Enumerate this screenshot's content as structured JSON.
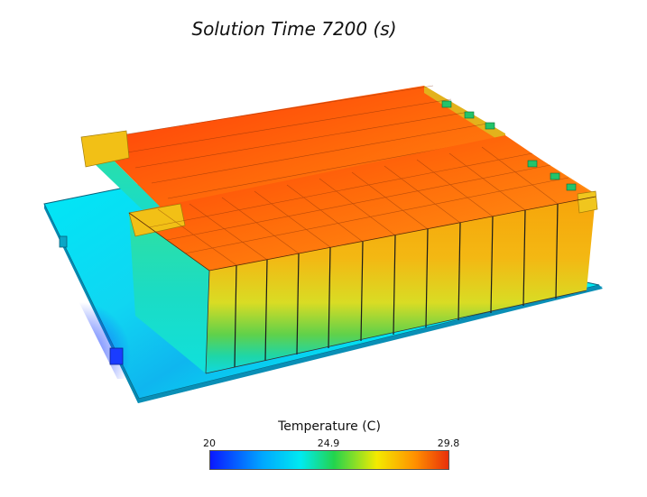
{
  "title": "Solution Time 7200 (s)",
  "legend": {
    "title": "Temperature (C)",
    "min": "20",
    "mid": "24.9",
    "max": "29.8",
    "colors": [
      "#0a18ff",
      "#00e5ff",
      "#23d44d",
      "#f4ea00",
      "#ff8c00",
      "#e8380a"
    ]
  }
}
